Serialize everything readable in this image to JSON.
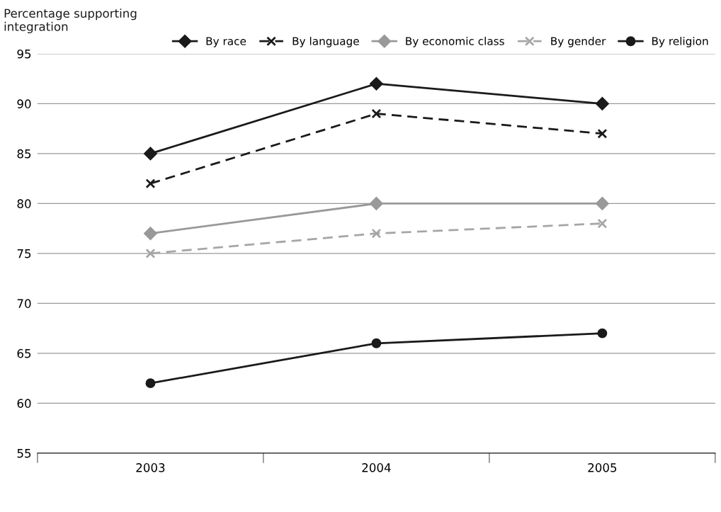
{
  "chart_data": {
    "type": "line",
    "ylabel": "Percentage supporting\nintegration",
    "categories": [
      "2003",
      "2004",
      "2005"
    ],
    "series": [
      {
        "name": "By race",
        "color": "#1a1a1a",
        "marker": "diamond",
        "line_style": "solid",
        "values": [
          85,
          92,
          90
        ]
      },
      {
        "name": "By language",
        "color": "#1a1a1a",
        "marker": "cross",
        "line_style": "dashed",
        "values": [
          82,
          89,
          87
        ]
      },
      {
        "name": "By economic class",
        "color": "#999999",
        "marker": "diamond",
        "line_style": "solid",
        "values": [
          77,
          80,
          80
        ]
      },
      {
        "name": "By gender",
        "color": "#a6a6a6",
        "marker": "cross",
        "line_style": "dashed",
        "values": [
          75,
          77,
          78
        ]
      },
      {
        "name": "By religion",
        "color": "#1a1a1a",
        "marker": "circle",
        "line_style": "solid",
        "values": [
          62,
          66,
          67
        ]
      }
    ],
    "ylim": [
      55,
      95
    ],
    "yticks": [
      55,
      60,
      65,
      70,
      75,
      80,
      85,
      90,
      95
    ],
    "grid": "y",
    "legend": "top right"
  }
}
